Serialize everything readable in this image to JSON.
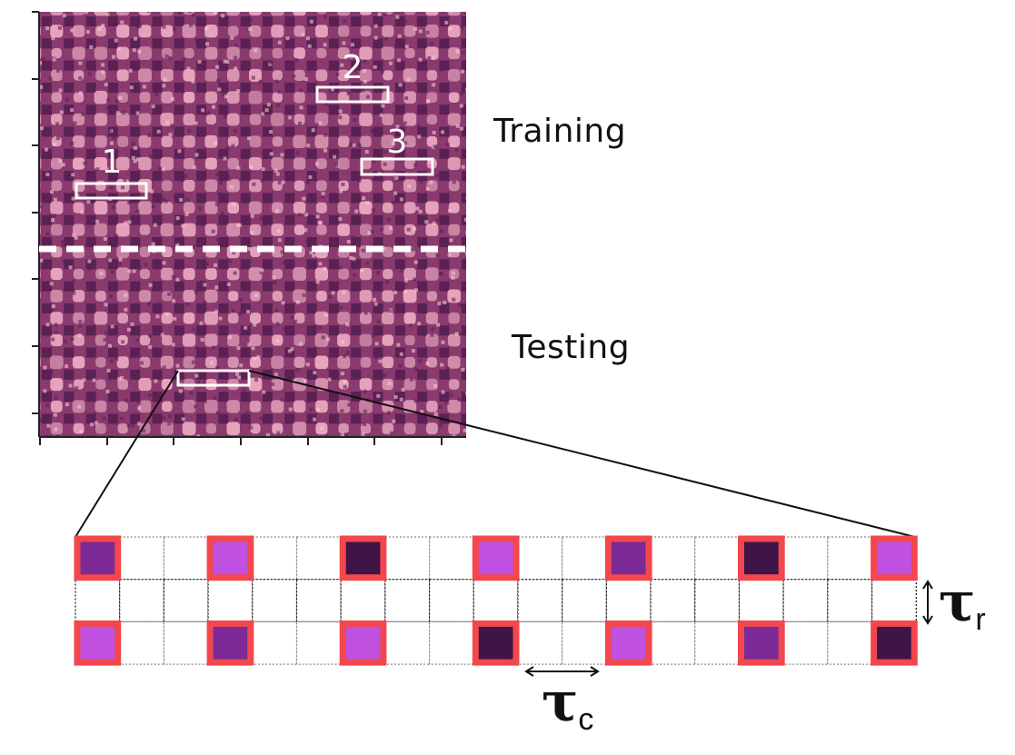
{
  "figure": {
    "image_panel": {
      "region_labels": [
        "1",
        "2",
        "3"
      ],
      "split": {
        "upper_label": "Training",
        "lower_label": "Testing"
      }
    },
    "zoom": {
      "tau_c": "τ",
      "tau_c_sub": "c",
      "tau_r": "τ",
      "tau_r_sub": "r"
    },
    "colors": {
      "marked_cell_border": "#f2474d",
      "cell_light": "#bf50e0",
      "cell_mid": "#7c2a96",
      "cell_dark": "#3f1547",
      "lattice_bg": "#8a3a6e",
      "lattice_bright": "#f2b2c6",
      "lattice_dark": "#4a1a4a"
    },
    "zoom_top_row": [
      "mid",
      "light",
      "dark",
      "light",
      "mid",
      "dark",
      "light"
    ],
    "zoom_bottom_row": [
      "light",
      "mid",
      "light",
      "dark",
      "light",
      "mid",
      "dark"
    ]
  }
}
